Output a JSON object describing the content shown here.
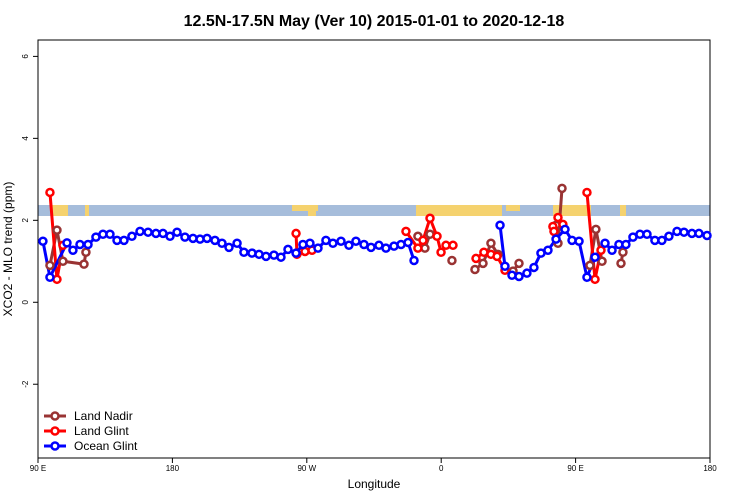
{
  "chart_data": {
    "type": "line",
    "title": "12.5N-17.5N May (Ver 10)   2015-01-01 to 2020-12-18",
    "xlabel": "Longitude",
    "ylabel": "XCO2 - MLO trend (ppm)",
    "xlim": [
      90,
      540
    ],
    "xticks": [
      {
        "value": 90,
        "label": "90 E"
      },
      180,
      {
        "value": 270,
        "label": "90 W"
      },
      {
        "value": 360,
        "label": "0"
      },
      {
        "value": 450,
        "label": "90 E"
      },
      {
        "value": 540,
        "label": "180"
      }
    ],
    "ylim": [
      -3.8,
      6.4
    ],
    "yticks": [
      -2,
      0,
      2,
      4,
      6
    ],
    "legend": "bottom-left",
    "series": [
      {
        "name": "Land Nadir",
        "color": "#993333",
        "x": [
          98.0,
          102.7,
          106.7,
          120.8,
          122.1,
          null,
          344.4,
          349.1,
          352.5,
          null,
          367.2,
          null,
          382.6,
          388.0,
          393.3,
          398.0,
          null,
          408.1,
          412.1,
          null,
          436.9,
          438.2,
          440.9,
          null,
          459.6,
          463.6,
          467.7,
          null,
          480.4,
          481.7
        ],
        "values": [
          0.9,
          1.76,
          1.0,
          0.93,
          1.22,
          null,
          1.61,
          1.32,
          1.66,
          null,
          1.02,
          null,
          0.8,
          0.95,
          1.44,
          1.17,
          null,
          0.76,
          0.95,
          null,
          1.88,
          1.44,
          2.78,
          null,
          0.9,
          1.78,
          1.0,
          null,
          0.95,
          1.22
        ]
      },
      {
        "name": "Land Glint",
        "color": "#ff0000",
        "x": [
          98.0,
          102.7,
          106.7,
          null,
          262.8,
          263.4,
          268.8,
          273.5,
          null,
          336.4,
          344.4,
          347.8,
          352.5,
          357.2,
          359.9,
          363.2,
          367.9,
          null,
          383.3,
          388.6,
          393.3,
          397.4,
          402.7,
          null,
          434.8,
          435.5,
          438.2,
          441.5,
          null,
          457.6,
          463.0,
          467.0
        ],
        "values": [
          2.68,
          0.56,
          1.39,
          null,
          1.68,
          1.17,
          1.24,
          1.27,
          null,
          1.73,
          1.32,
          1.51,
          2.05,
          1.61,
          1.22,
          1.39,
          1.39,
          null,
          1.07,
          1.22,
          1.17,
          1.12,
          0.78,
          null,
          1.85,
          1.73,
          2.07,
          1.9,
          null,
          2.68,
          0.56,
          1.27
        ]
      },
      {
        "name": "Ocean Glint",
        "color": "#0000ff",
        "x": [
          93.3,
          98.0,
          109.4,
          113.4,
          118.1,
          123.5,
          128.8,
          133.5,
          138.2,
          142.9,
          147.6,
          152.9,
          158.3,
          163.7,
          169.0,
          173.7,
          178.4,
          183.1,
          188.4,
          193.8,
          198.5,
          203.2,
          208.5,
          213.2,
          217.9,
          223.3,
          227.9,
          233.3,
          238.0,
          242.7,
          248.0,
          252.7,
          257.4,
          262.8,
          267.4,
          272.1,
          277.5,
          282.8,
          287.5,
          292.9,
          298.2,
          302.9,
          308.3,
          313.0,
          318.3,
          323.0,
          328.4,
          333.1,
          337.8,
          341.8,
          null,
          399.4,
          402.7,
          407.4,
          412.1,
          417.4,
          422.1,
          426.8,
          431.5,
          436.9,
          442.9,
          447.6,
          452.3,
          457.6,
          463.0,
          469.7,
          474.4,
          479.0,
          483.7,
          488.4,
          493.1,
          497.8,
          503.1,
          507.8,
          512.5,
          517.9,
          522.6,
          527.9,
          532.6,
          538.0
        ],
        "values": [
          1.49,
          0.61,
          1.45,
          1.27,
          1.41,
          1.41,
          1.59,
          1.66,
          1.66,
          1.51,
          1.51,
          1.61,
          1.73,
          1.71,
          1.68,
          1.68,
          1.61,
          1.71,
          1.59,
          1.56,
          1.54,
          1.56,
          1.51,
          1.44,
          1.34,
          1.44,
          1.22,
          1.2,
          1.17,
          1.12,
          1.15,
          1.1,
          1.29,
          1.2,
          1.41,
          1.44,
          1.32,
          1.51,
          1.44,
          1.49,
          1.39,
          1.49,
          1.41,
          1.34,
          1.39,
          1.32,
          1.37,
          1.41,
          1.46,
          1.02,
          null,
          1.88,
          0.88,
          0.66,
          0.63,
          0.71,
          0.85,
          1.2,
          1.27,
          1.54,
          1.78,
          1.51,
          1.49,
          0.61,
          1.1,
          1.44,
          1.27,
          1.41,
          1.41,
          1.59,
          1.66,
          1.66,
          1.51,
          1.51,
          1.61,
          1.73,
          1.71,
          1.68,
          1.68,
          1.63
        ]
      }
    ]
  }
}
